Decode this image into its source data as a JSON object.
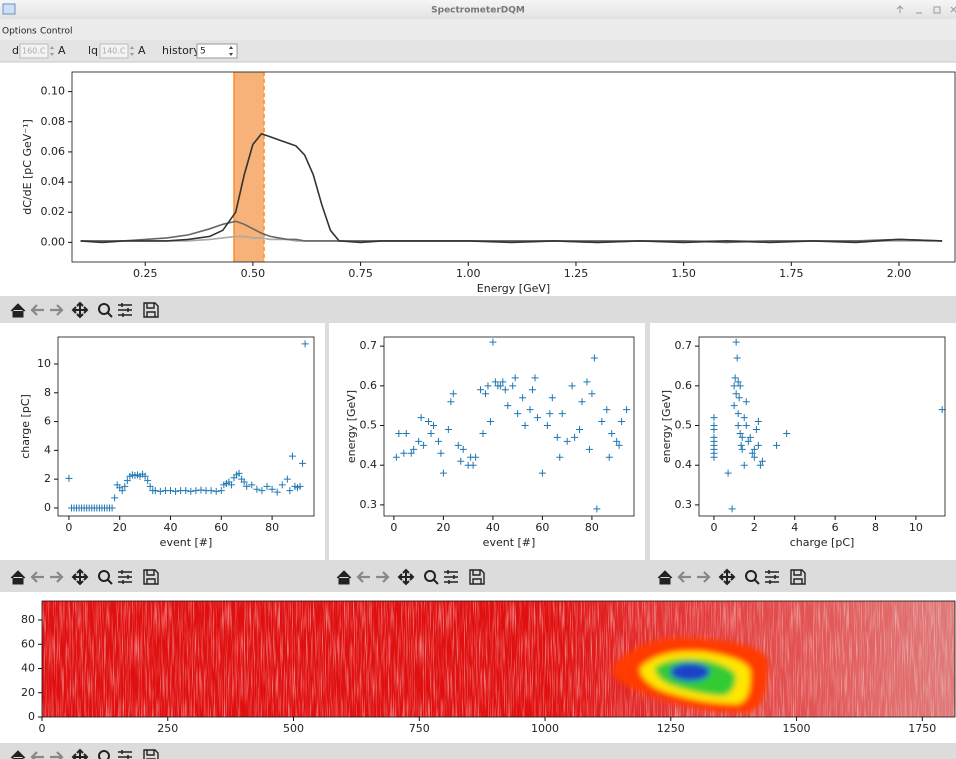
{
  "window": {
    "title": "SpectrometerDQM"
  },
  "menu": [
    "Options",
    "Control"
  ],
  "controls": [
    {
      "label": "d",
      "value": "160.C",
      "unit": "A"
    },
    {
      "label": "lq",
      "value": "140.C",
      "unit": "A"
    },
    {
      "label": "history",
      "value": "5"
    }
  ],
  "chart_data": [
    {
      "type": "line",
      "xlabel": "Energy [GeV]",
      "ylabel": "dC/dE [pC GeV⁻¹]",
      "x": [
        0.1,
        0.15,
        0.2,
        0.25,
        0.3,
        0.35,
        0.4,
        0.43,
        0.46,
        0.48,
        0.5,
        0.52,
        0.54,
        0.56,
        0.58,
        0.6,
        0.62,
        0.64,
        0.66,
        0.68,
        0.7,
        0.75,
        0.8,
        0.9,
        1.0,
        1.1,
        1.2,
        1.3,
        1.4,
        1.5,
        1.6,
        1.7,
        1.8,
        1.9,
        2.0,
        2.1
      ],
      "series": [
        {
          "color": "#aaaaaa",
          "values": [
            0.001,
            0.001,
            0.001,
            0.001,
            0.001,
            0.001,
            0.002,
            0.003,
            0.004,
            0.004,
            0.003,
            0.003,
            0.002,
            0.002,
            0.002,
            0.001,
            0.001,
            0.001,
            0.001,
            0.001,
            0.001,
            0.001,
            0.001,
            0.001,
            0.001,
            0.001,
            0.001,
            0.0,
            0.001,
            0.001,
            0.001,
            0.001,
            0.001,
            0.001,
            0.001,
            0.001
          ]
        },
        {
          "color": "#666666",
          "values": [
            0.001,
            0.001,
            0.001,
            0.002,
            0.003,
            0.005,
            0.009,
            0.012,
            0.014,
            0.012,
            0.009,
            0.006,
            0.004,
            0.003,
            0.002,
            0.002,
            0.001,
            0.001,
            0.001,
            0.001,
            0.001,
            0.001,
            0.001,
            0.001,
            0.001,
            0.001,
            0.001,
            0.001,
            0.001,
            0.001,
            0.0,
            0.001,
            0.001,
            0.001,
            0.002,
            0.001
          ]
        },
        {
          "color": "#333333",
          "values": [
            0.001,
            0.0,
            0.001,
            0.001,
            0.001,
            0.002,
            0.004,
            0.008,
            0.02,
            0.045,
            0.065,
            0.072,
            0.07,
            0.068,
            0.066,
            0.064,
            0.058,
            0.045,
            0.025,
            0.008,
            0.001,
            0.0,
            0.001,
            0.001,
            0.001,
            0.0,
            0.001,
            0.0,
            0.001,
            0.0,
            0.001,
            0.0,
            0.001,
            0.0,
            0.002,
            0.001
          ]
        }
      ],
      "span": [
        0.456,
        0.526
      ],
      "span_color": "#f4a460",
      "span_edge_color": "#ff7f0e",
      "xlim": [
        0.08,
        2.13
      ],
      "ylim": [
        -0.013,
        0.113
      ],
      "xticks": [
        0.25,
        {
          "value": 0.5,
          "label": "0.50"
        },
        0.75,
        {
          "value": 1,
          "label": "1.00"
        },
        1.25,
        {
          "value": 1.5,
          "label": "1.50"
        },
        1.75,
        {
          "value": 2,
          "label": "2.00"
        }
      ],
      "yticks": [
        {
          "value": 0,
          "label": "0.00"
        },
        {
          "value": 0.02,
          "label": "0.02"
        },
        {
          "value": 0.04,
          "label": "0.04"
        },
        {
          "value": 0.06,
          "label": "0.06"
        },
        {
          "value": 0.08,
          "label": "0.08"
        },
        {
          "value": 0.1,
          "label": "0.10"
        }
      ]
    },
    {
      "type": "scatter",
      "xlabel": "event [#]",
      "ylabel": "charge [pC]",
      "color": "#1f77b4",
      "x": [
        0,
        1,
        2,
        3,
        4,
        5,
        6,
        7,
        8,
        9,
        10,
        11,
        12,
        13,
        14,
        15,
        16,
        17,
        18,
        19,
        20,
        21,
        22,
        23,
        24,
        25,
        26,
        27,
        28,
        29,
        30,
        31,
        32,
        33,
        34,
        36,
        38,
        40,
        42,
        44,
        46,
        48,
        50,
        52,
        54,
        56,
        58,
        60,
        61,
        62,
        63,
        64,
        65,
        66,
        67,
        68,
        69,
        70,
        72,
        74,
        76,
        78,
        80,
        82,
        84,
        86,
        87,
        88,
        89,
        90,
        91,
        92,
        93
      ],
      "values": [
        2.05,
        0,
        0,
        0,
        0,
        0,
        0,
        0,
        0,
        0,
        0,
        0,
        0,
        0,
        0,
        0,
        0,
        0,
        0.7,
        1.6,
        1.4,
        1.2,
        1.5,
        1.9,
        2.2,
        2.3,
        2.25,
        2.3,
        2.2,
        2.35,
        2.2,
        1.9,
        1.5,
        1.2,
        1.2,
        1.15,
        1.2,
        1.2,
        1.15,
        1.2,
        1.2,
        1.15,
        1.2,
        1.25,
        1.2,
        1.2,
        1.15,
        1.2,
        1.6,
        1.7,
        1.8,
        1.6,
        2.1,
        2.3,
        2.4,
        2.0,
        1.8,
        1.5,
        1.6,
        1.3,
        1.2,
        1.5,
        1.3,
        1.1,
        1.6,
        2.0,
        1.2,
        3.6,
        1.5,
        1.4,
        1.5,
        3.1,
        11.4
      ],
      "xlim": [
        -4.3,
        96.5
      ],
      "ylim": [
        -0.56,
        11.875
      ],
      "xticks": [
        0,
        20,
        40,
        60,
        80
      ],
      "yticks": [
        0,
        2,
        4,
        6,
        8,
        10
      ]
    },
    {
      "type": "scatter",
      "xlabel": "event [#]",
      "ylabel": "energy [GeV]",
      "color": "#1f77b4",
      "x": [
        1,
        2,
        4,
        5,
        7,
        8,
        10,
        11,
        12,
        14,
        15,
        16,
        18,
        19,
        20,
        22,
        23,
        24,
        26,
        27,
        28,
        30,
        31,
        32,
        33,
        35,
        36,
        37,
        38,
        39,
        40,
        41,
        42,
        43,
        44,
        45,
        46,
        48,
        49,
        50,
        52,
        53,
        55,
        56,
        57,
        58,
        60,
        62,
        63,
        64,
        66,
        67,
        68,
        70,
        72,
        73,
        75,
        76,
        78,
        79,
        80,
        81,
        82,
        84,
        86,
        87,
        88,
        90,
        91,
        92,
        94
      ],
      "values": [
        0.42,
        0.48,
        0.43,
        0.48,
        0.43,
        0.44,
        0.46,
        0.52,
        0.45,
        0.51,
        0.48,
        0.5,
        0.46,
        0.43,
        0.38,
        0.49,
        0.56,
        0.58,
        0.45,
        0.41,
        0.44,
        0.4,
        0.42,
        0.4,
        0.42,
        0.59,
        0.48,
        0.58,
        0.6,
        0.51,
        0.71,
        0.61,
        0.6,
        0.6,
        0.61,
        0.59,
        0.55,
        0.6,
        0.62,
        0.53,
        0.57,
        0.5,
        0.54,
        0.59,
        0.62,
        0.52,
        0.38,
        0.5,
        0.53,
        0.57,
        0.47,
        0.42,
        0.53,
        0.46,
        0.6,
        0.47,
        0.49,
        0.56,
        0.61,
        0.44,
        0.58,
        0.67,
        0.29,
        0.51,
        0.54,
        0.42,
        0.48,
        0.46,
        0.45,
        0.51,
        0.54
      ],
      "xlim": [
        -4,
        97
      ],
      "ylim": [
        0.272,
        0.723
      ],
      "xticks": [
        0,
        20,
        40,
        60,
        80
      ],
      "yticks": [
        0.3,
        0.4,
        0.5,
        0.6,
        0.7
      ]
    },
    {
      "type": "scatter",
      "xlabel": "charge [pC]",
      "ylabel": "energy [GeV]",
      "color": "#1f77b4",
      "x": [
        0,
        0,
        0,
        0,
        0,
        0,
        0,
        0,
        0,
        0.7,
        0.9,
        1.0,
        1.0,
        1.05,
        1.1,
        1.1,
        1.15,
        1.2,
        1.2,
        1.2,
        1.25,
        1.3,
        1.3,
        1.35,
        1.4,
        1.5,
        1.5,
        1.6,
        1.7,
        1.8,
        1.9,
        2.0,
        2.1,
        2.2,
        2.3,
        2.4,
        2.2,
        1.6,
        1.4,
        2.0,
        3.1,
        3.6,
        11.3
      ],
      "values": [
        0.43,
        0.45,
        0.47,
        0.49,
        0.5,
        0.52,
        0.44,
        0.42,
        0.46,
        0.38,
        0.29,
        0.6,
        0.55,
        0.62,
        0.71,
        0.58,
        0.67,
        0.61,
        0.53,
        0.5,
        0.57,
        0.48,
        0.6,
        0.45,
        0.44,
        0.52,
        0.4,
        0.56,
        0.46,
        0.47,
        0.43,
        0.42,
        0.49,
        0.51,
        0.4,
        0.41,
        0.45,
        0.5,
        0.47,
        0.44,
        0.45,
        0.48,
        0.54
      ],
      "xlim": [
        -0.74,
        11.44
      ],
      "ylim": [
        0.272,
        0.723
      ],
      "xticks": [
        0,
        2,
        4,
        6,
        8,
        10
      ],
      "yticks": [
        0.3,
        0.4,
        0.5,
        0.6,
        0.7
      ]
    },
    {
      "type": "image",
      "xlim": [
        0,
        1815
      ],
      "ylim": [
        0,
        95.7
      ],
      "xticks": [
        0,
        250,
        500,
        750,
        1000,
        1250,
        1500,
        1750
      ],
      "yticks": [
        0,
        20,
        40,
        60,
        80
      ]
    }
  ]
}
